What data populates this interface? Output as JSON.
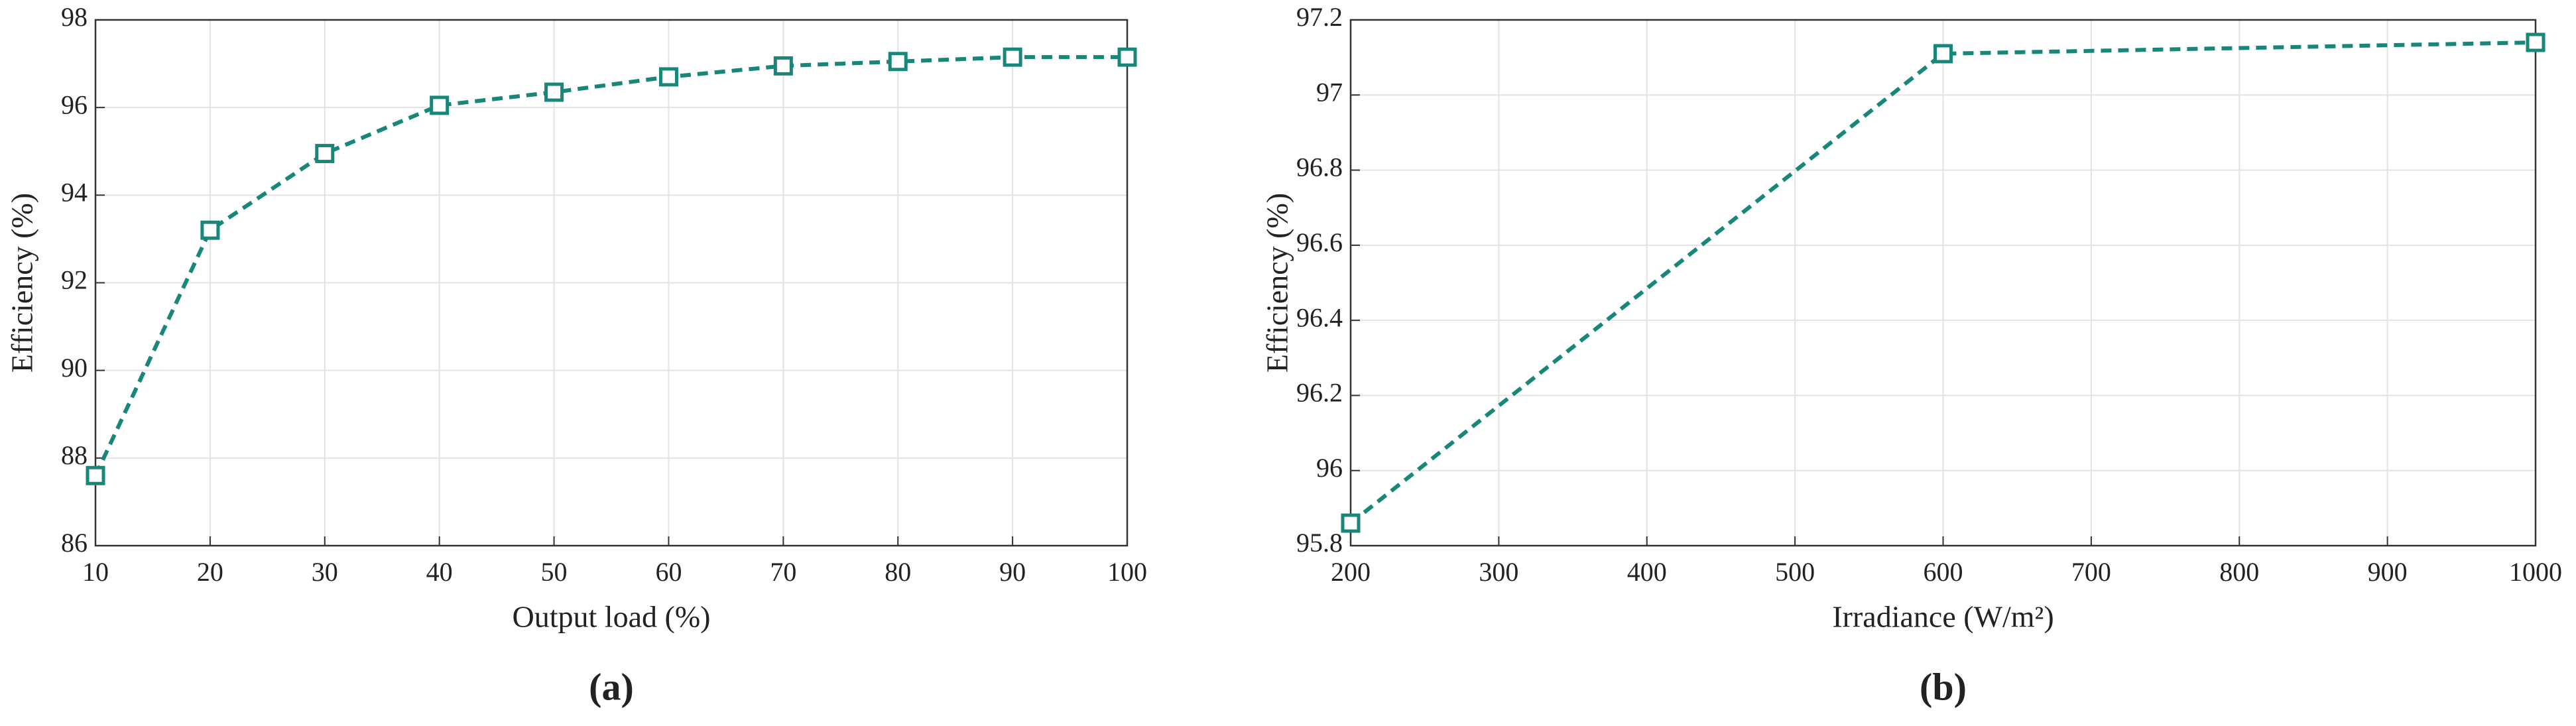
{
  "chart_data": [
    {
      "type": "line",
      "caption": "(a)",
      "xlabel": "Output load (%)",
      "ylabel": "Efficiency (%)",
      "x": [
        10,
        20,
        30,
        40,
        50,
        60,
        70,
        80,
        90,
        100
      ],
      "series": [
        {
          "color": "#17877a",
          "values": [
            87.6,
            93.2,
            94.95,
            96.05,
            96.35,
            96.7,
            96.95,
            97.05,
            97.15,
            97.15
          ]
        }
      ],
      "xlim": [
        10,
        100
      ],
      "xticks": [
        10,
        20,
        30,
        40,
        50,
        60,
        70,
        80,
        90,
        100
      ],
      "ylim": [
        86,
        98
      ],
      "yticks": [
        86,
        88,
        90,
        92,
        94,
        96,
        98
      ],
      "grid": true
    },
    {
      "type": "line",
      "caption": "(b)",
      "xlabel": "Irradiance (W/m²)",
      "ylabel": "Efficiency (%)",
      "x": [
        200,
        600,
        1000
      ],
      "series": [
        {
          "color": "#17877a",
          "values": [
            95.86,
            97.11,
            97.14
          ]
        }
      ],
      "xlim": [
        200,
        1000
      ],
      "xticks": [
        200,
        300,
        400,
        500,
        600,
        700,
        800,
        900,
        1000
      ],
      "ylim": [
        95.8,
        97.2
      ],
      "yticks": [
        95.8,
        96,
        96.2,
        96.4,
        96.6,
        96.8,
        97,
        97.2
      ],
      "grid": true
    }
  ]
}
